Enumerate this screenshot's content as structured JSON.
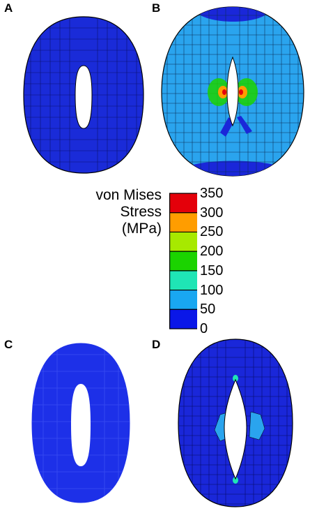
{
  "panels": {
    "a": {
      "label": "A"
    },
    "b": {
      "label": "B"
    },
    "c": {
      "label": "C"
    },
    "d": {
      "label": "D"
    }
  },
  "legend": {
    "title_lines": [
      "von Mises",
      "Stress",
      "(MPa)"
    ],
    "ticks": [
      "350",
      "300",
      "250",
      "200",
      "150",
      "100",
      "50",
      "0"
    ],
    "colors": [
      "#e4000a",
      "#ff9d00",
      "#a7e900",
      "#1bd300",
      "#1fe5b5",
      "#19a7f1",
      "#0a17e8"
    ]
  },
  "colors": {
    "deep_blue": "#1a27d9",
    "light_blue": "#2aa4ee",
    "mesh_line": "#000000"
  }
}
